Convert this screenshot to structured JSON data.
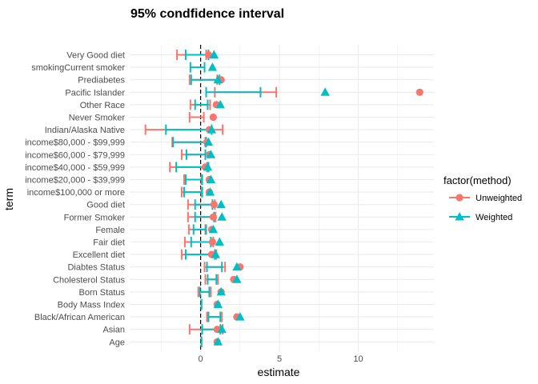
{
  "chart_data": {
    "type": "scatter",
    "title": "95% condfidence interval",
    "xlabel": "estimate",
    "ylabel": "term",
    "xlim": [
      -4.5,
      14.8
    ],
    "x_ticks": [
      0,
      5,
      10
    ],
    "x_tick_labels": [
      "0",
      "5",
      "10"
    ],
    "reference_line": {
      "x": 0,
      "style": "dashed"
    },
    "grid": true,
    "legend": {
      "title": "factor(method)",
      "position": "right",
      "entries": [
        {
          "name": "Unweighted",
          "color": "#F8766D",
          "shape": "circle"
        },
        {
          "name": "Weighted",
          "color": "#00BFC4",
          "shape": "triangle"
        }
      ]
    },
    "terms": [
      "Age",
      "Asian",
      "Black/African American",
      "Body Mass Index",
      "Born Status",
      "Cholesterol Status",
      "Diabtes Status",
      "Excellent diet",
      "Fair diet",
      "Female",
      "Former Smoker",
      "Good diet",
      "income$100,000 or more",
      "income$20,000 - $39,999",
      "income$40,000 - $59,999",
      "income$60,000 - $79,999",
      "income$80,000 - $99,999",
      "Indian/Alaska Native",
      "Never Smoker",
      "Other Race",
      "Pacific Islander",
      "Prediabetes",
      "smokingCurrent smoker",
      "Very Good diet"
    ],
    "series": [
      {
        "name": "Unweighted",
        "color": "#F8766D",
        "estimate": [
          1.05,
          1.05,
          2.3,
          1.05,
          1.3,
          2.1,
          2.5,
          0.7,
          0.75,
          0.7,
          0.8,
          0.85,
          0.55,
          0.55,
          0.3,
          0.55,
          0.4,
          0.55,
          0.8,
          1.0,
          13.9,
          1.3,
          null,
          0.5
        ],
        "lower": [
          0.05,
          -0.7,
          0.4,
          0.05,
          -0.15,
          0.3,
          0.25,
          -1.2,
          -1.0,
          -0.75,
          -0.8,
          -0.8,
          -1.2,
          -1.05,
          -1.95,
          -1.2,
          -1.8,
          -3.5,
          -0.7,
          -0.65,
          0.9,
          -0.7,
          null,
          -1.5
        ],
        "upper": [
          0.05,
          1.4,
          1.35,
          0.05,
          0.65,
          1.1,
          1.55,
          1.0,
          0.8,
          0.3,
          0.95,
          0.9,
          0.05,
          0.05,
          0.4,
          0.3,
          0.3,
          1.4,
          0.2,
          0.6,
          4.8,
          1.05,
          null,
          0.35
        ]
      },
      {
        "name": "Weighted",
        "color": "#00BFC4",
        "estimate": [
          1.1,
          1.35,
          2.5,
          1.1,
          1.3,
          2.3,
          2.3,
          0.95,
          1.2,
          0.8,
          1.35,
          1.3,
          0.6,
          0.65,
          0.45,
          0.65,
          0.5,
          0.7,
          null,
          1.25,
          7.9,
          1.1,
          0.75,
          0.85
        ],
        "lower": [
          0.05,
          0.1,
          0.5,
          0.05,
          -0.05,
          0.45,
          0.4,
          -0.95,
          -0.6,
          -0.45,
          -0.35,
          -0.35,
          -1.05,
          -0.95,
          -1.55,
          -0.9,
          -1.75,
          -2.2,
          null,
          -0.35,
          0.35,
          -0.6,
          -0.65,
          -0.95
        ],
        "upper": [
          0.05,
          1.25,
          1.25,
          0.05,
          0.55,
          1.0,
          1.35,
          0.9,
          0.65,
          0.35,
          0.85,
          0.75,
          0.1,
          0.1,
          0.5,
          0.3,
          0.35,
          0.7,
          null,
          0.45,
          3.8,
          1.2,
          0.25,
          0.5
        ]
      }
    ]
  }
}
